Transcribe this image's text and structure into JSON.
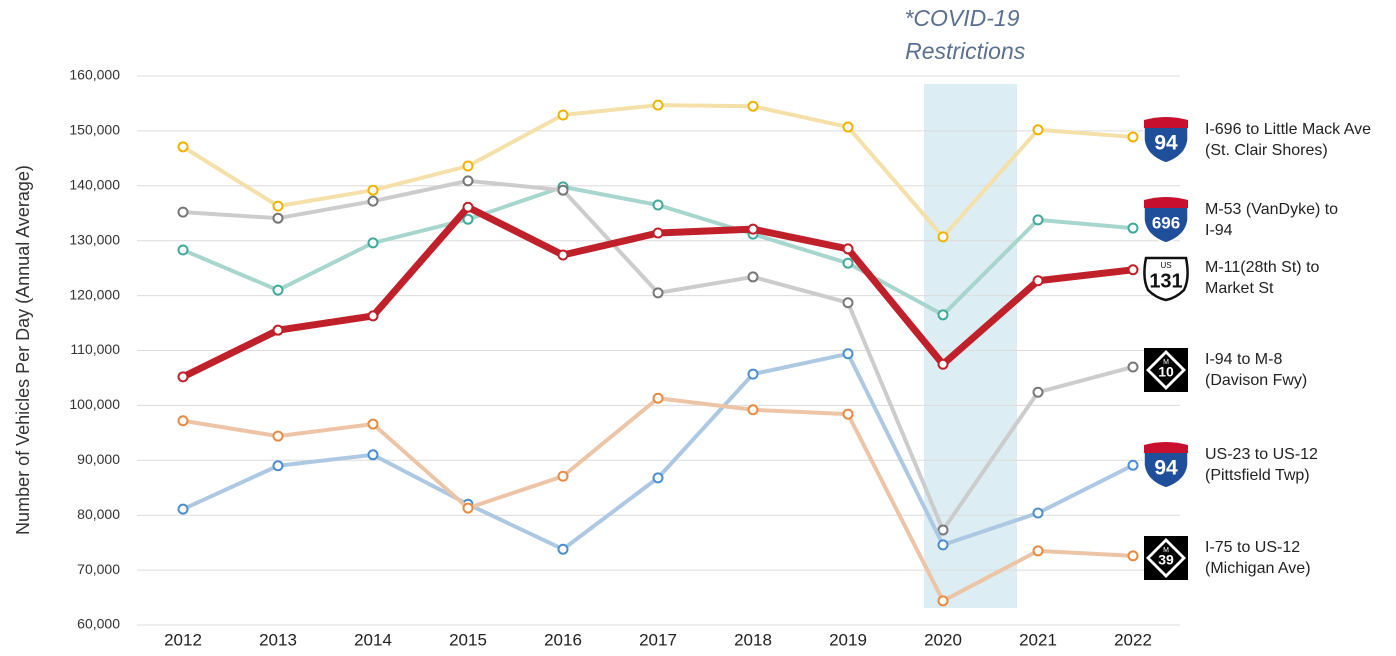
{
  "chart_data": {
    "type": "line",
    "annotation": "*COVID-19 Restrictions",
    "y_label": "Number of Vehicles Per Day (Annual Average)",
    "categories": [
      "2012",
      "2013",
      "2014",
      "2015",
      "2016",
      "2017",
      "2018",
      "2019",
      "2020",
      "2021",
      "2022"
    ],
    "ylim": [
      60000,
      160000
    ],
    "yticks": [
      {
        "value": 60000,
        "label": "60,000"
      },
      {
        "value": 70000,
        "label": "70,000"
      },
      {
        "value": 80000,
        "label": "80,000"
      },
      {
        "value": 90000,
        "label": "90,000"
      },
      {
        "value": 100000,
        "label": "100,000"
      },
      {
        "value": 110000,
        "label": "110,000"
      },
      {
        "value": 120000,
        "label": "120,000"
      },
      {
        "value": 130000,
        "label": "130,000"
      },
      {
        "value": 140000,
        "label": "140,000"
      },
      {
        "value": 150000,
        "label": "150,000"
      },
      {
        "value": 160000,
        "label": "160,000"
      }
    ],
    "grid": true,
    "series": [
      {
        "name": "I-696 to Little Mack Ave (St. Clair Shores)",
        "color": "#f4e0a8",
        "marker_color": "#f0b400",
        "shield": {
          "kind": "interstate",
          "number": "94"
        },
        "values": [
          147100,
          136300,
          139200,
          143600,
          152900,
          154700,
          154500,
          150700,
          130700,
          150200,
          148900
        ]
      },
      {
        "name": "M-53 (VanDyke) to I-94",
        "color": "#a6d6cd",
        "marker_color": "#3fa99a",
        "shield": {
          "kind": "interstate",
          "number": "696"
        },
        "values": [
          128300,
          121000,
          129600,
          133900,
          139800,
          136500,
          131200,
          125900,
          116500,
          133800,
          132300
        ]
      },
      {
        "name": "M-11(28th St) to Market St",
        "color": "#c0202a",
        "marker_color": "#c0202a",
        "bold": true,
        "shield": {
          "kind": "us",
          "label": "US",
          "number": "131"
        },
        "values": [
          105200,
          113700,
          116300,
          136100,
          127400,
          131400,
          132100,
          128500,
          107500,
          122700,
          124700
        ]
      },
      {
        "name": "I-94 to M-8 (Davison Fwy)",
        "color": "#cccccc",
        "marker_color": "#777777",
        "shield": {
          "kind": "michigan",
          "label": "M",
          "number": "10"
        },
        "values": [
          135200,
          134100,
          137200,
          140900,
          139200,
          120500,
          123400,
          118700,
          77300,
          102400,
          107000
        ]
      },
      {
        "name": "US-23 to US-12 (Pittsfield Twp)",
        "color": "#adc8e2",
        "marker_color": "#4a8ed0",
        "shield": {
          "kind": "interstate",
          "number": "94"
        },
        "values": [
          81100,
          89000,
          91000,
          82000,
          73800,
          86800,
          105700,
          109400,
          74600,
          80400,
          89100
        ]
      },
      {
        "name": "I-75 to US-12 (Michigan Ave)",
        "color": "#eec4a6",
        "marker_color": "#e88a40",
        "shield": {
          "kind": "michigan",
          "label": "M",
          "number": "39"
        },
        "values": [
          97200,
          94400,
          96600,
          81300,
          87100,
          101300,
          99200,
          98400,
          64400,
          73500,
          72600
        ]
      }
    ]
  }
}
